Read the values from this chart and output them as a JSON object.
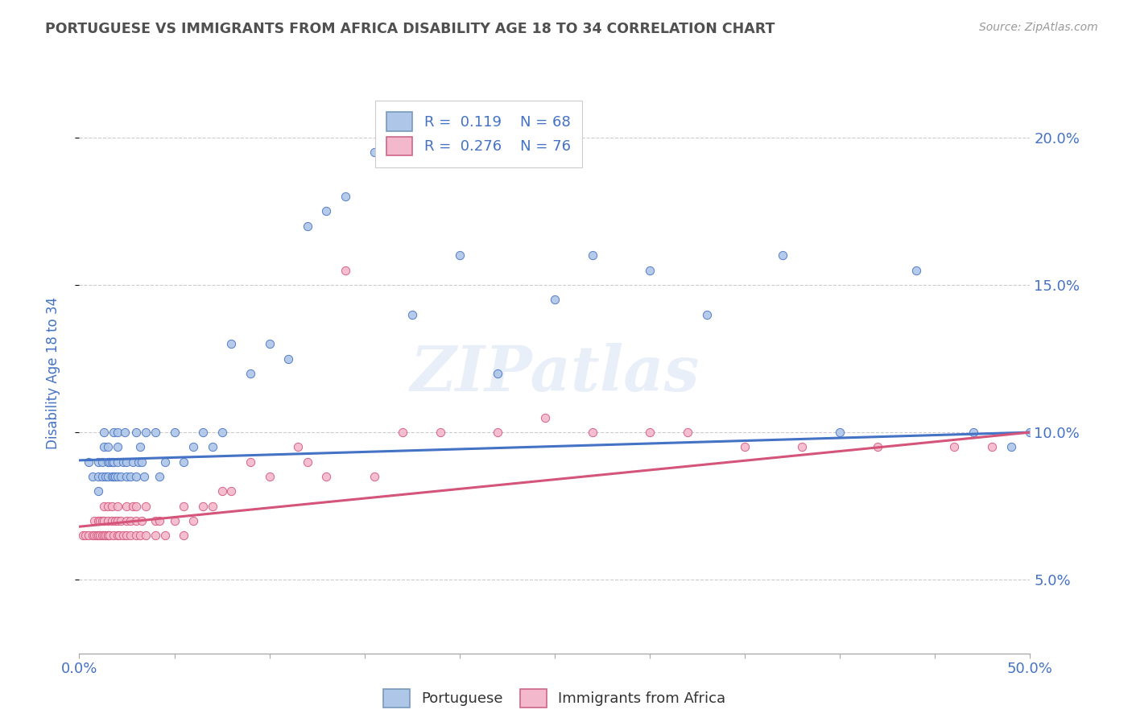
{
  "title": "PORTUGUESE VS IMMIGRANTS FROM AFRICA DISABILITY AGE 18 TO 34 CORRELATION CHART",
  "source": "Source: ZipAtlas.com",
  "ylabel": "Disability Age 18 to 34",
  "xlim": [
    0.0,
    0.5
  ],
  "ylim": [
    0.025,
    0.215
  ],
  "xticks": [
    0.0,
    0.05,
    0.1,
    0.15,
    0.2,
    0.25,
    0.3,
    0.35,
    0.4,
    0.45,
    0.5
  ],
  "yticks": [
    0.05,
    0.1,
    0.15,
    0.2
  ],
  "ytick_labels": [
    "5.0%",
    "10.0%",
    "15.0%",
    "20.0%"
  ],
  "series1_color": "#aec6e8",
  "series2_color": "#f4b8cc",
  "line1_color": "#4472c4",
  "line2_color": "#d4547a",
  "legend_r1": "0.119",
  "legend_n1": "68",
  "legend_r2": "0.276",
  "legend_n2": "76",
  "watermark": "ZIPatlas",
  "background_color": "#ffffff",
  "grid_color": "#cccccc",
  "title_color": "#505050",
  "axis_label_color": "#4472c4",
  "tick_color": "#4472c4",
  "series1_x": [
    0.005,
    0.007,
    0.01,
    0.01,
    0.01,
    0.012,
    0.012,
    0.013,
    0.013,
    0.014,
    0.015,
    0.015,
    0.015,
    0.016,
    0.017,
    0.017,
    0.018,
    0.018,
    0.018,
    0.019,
    0.02,
    0.02,
    0.02,
    0.02,
    0.022,
    0.023,
    0.024,
    0.025,
    0.025,
    0.027,
    0.028,
    0.03,
    0.03,
    0.031,
    0.032,
    0.033,
    0.034,
    0.035,
    0.04,
    0.042,
    0.045,
    0.05,
    0.055,
    0.06,
    0.065,
    0.07,
    0.075,
    0.08,
    0.09,
    0.1,
    0.11,
    0.12,
    0.13,
    0.14,
    0.155,
    0.175,
    0.2,
    0.22,
    0.25,
    0.27,
    0.3,
    0.33,
    0.37,
    0.4,
    0.44,
    0.47,
    0.49,
    0.5
  ],
  "series1_y": [
    0.09,
    0.085,
    0.09,
    0.085,
    0.08,
    0.09,
    0.085,
    0.095,
    0.1,
    0.085,
    0.09,
    0.085,
    0.095,
    0.09,
    0.085,
    0.09,
    0.09,
    0.085,
    0.1,
    0.085,
    0.09,
    0.085,
    0.1,
    0.095,
    0.085,
    0.09,
    0.1,
    0.085,
    0.09,
    0.085,
    0.09,
    0.1,
    0.085,
    0.09,
    0.095,
    0.09,
    0.085,
    0.1,
    0.1,
    0.085,
    0.09,
    0.1,
    0.09,
    0.095,
    0.1,
    0.095,
    0.1,
    0.13,
    0.12,
    0.13,
    0.125,
    0.17,
    0.175,
    0.18,
    0.195,
    0.14,
    0.16,
    0.12,
    0.145,
    0.16,
    0.155,
    0.14,
    0.16,
    0.1,
    0.155,
    0.1,
    0.095,
    0.1
  ],
  "series2_x": [
    0.002,
    0.003,
    0.005,
    0.007,
    0.008,
    0.008,
    0.009,
    0.01,
    0.01,
    0.011,
    0.011,
    0.012,
    0.012,
    0.013,
    0.013,
    0.013,
    0.014,
    0.015,
    0.015,
    0.015,
    0.015,
    0.016,
    0.017,
    0.017,
    0.018,
    0.019,
    0.02,
    0.02,
    0.02,
    0.021,
    0.022,
    0.023,
    0.025,
    0.025,
    0.025,
    0.027,
    0.027,
    0.028,
    0.03,
    0.03,
    0.03,
    0.032,
    0.033,
    0.035,
    0.035,
    0.04,
    0.04,
    0.042,
    0.045,
    0.05,
    0.055,
    0.055,
    0.06,
    0.065,
    0.07,
    0.075,
    0.08,
    0.09,
    0.1,
    0.115,
    0.12,
    0.13,
    0.14,
    0.155,
    0.17,
    0.19,
    0.22,
    0.245,
    0.27,
    0.3,
    0.32,
    0.35,
    0.38,
    0.42,
    0.46,
    0.48
  ],
  "series2_y": [
    0.065,
    0.065,
    0.065,
    0.065,
    0.065,
    0.07,
    0.065,
    0.07,
    0.065,
    0.07,
    0.065,
    0.07,
    0.065,
    0.07,
    0.065,
    0.075,
    0.065,
    0.065,
    0.07,
    0.075,
    0.065,
    0.065,
    0.07,
    0.075,
    0.065,
    0.07,
    0.065,
    0.07,
    0.075,
    0.065,
    0.07,
    0.065,
    0.065,
    0.07,
    0.075,
    0.065,
    0.07,
    0.075,
    0.065,
    0.07,
    0.075,
    0.065,
    0.07,
    0.065,
    0.075,
    0.07,
    0.065,
    0.07,
    0.065,
    0.07,
    0.065,
    0.075,
    0.07,
    0.075,
    0.075,
    0.08,
    0.08,
    0.09,
    0.085,
    0.095,
    0.09,
    0.085,
    0.155,
    0.085,
    0.1,
    0.1,
    0.1,
    0.105,
    0.1,
    0.1,
    0.1,
    0.095,
    0.095,
    0.095,
    0.095,
    0.095
  ]
}
